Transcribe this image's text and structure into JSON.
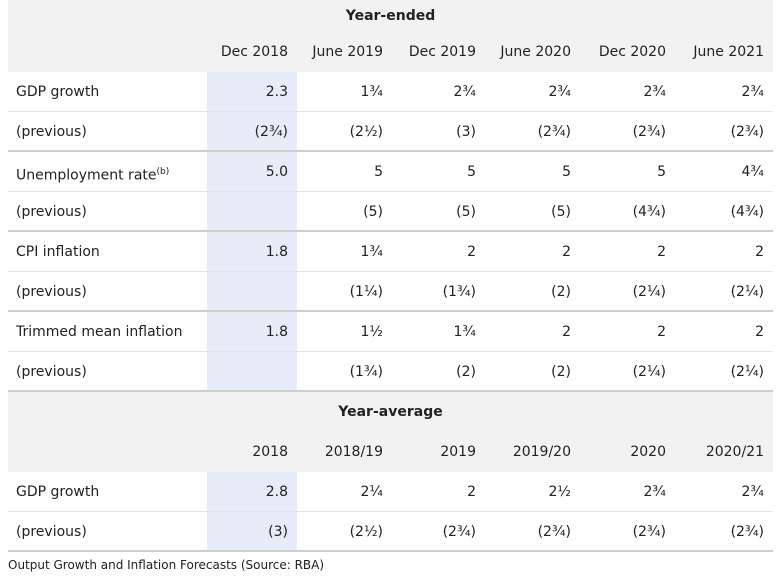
{
  "table": {
    "sections": [
      {
        "title": "Year-ended",
        "columns": [
          "Dec 2018",
          "June 2019",
          "Dec 2019",
          "June 2020",
          "Dec 2020",
          "June 2021"
        ],
        "rows": [
          {
            "label": "GDP growth",
            "values": [
              "2.3",
              "1¾",
              "2¾",
              "2¾",
              "2¾",
              "2¾"
            ]
          },
          {
            "label": "(previous)",
            "values": [
              "(2¾)",
              "(2½)",
              "(3)",
              "(2¾)",
              "(2¾)",
              "(2¾)"
            ]
          },
          {
            "label": "Unemployment rate",
            "note": "(b)",
            "values": [
              "5.0",
              "5",
              "5",
              "5",
              "5",
              "4¾"
            ]
          },
          {
            "label": "(previous)",
            "values": [
              null,
              "(5)",
              "(5)",
              "(5)",
              "(4¾)",
              "(4¾)"
            ]
          },
          {
            "label": "CPI inflation",
            "values": [
              "1.8",
              "1¾",
              "2",
              "2",
              "2",
              "2"
            ]
          },
          {
            "label": "(previous)",
            "values": [
              null,
              "(1¼)",
              "(1¾)",
              "(2)",
              "(2¼)",
              "(2¼)"
            ]
          },
          {
            "label": "Trimmed mean inflation",
            "values": [
              "1.8",
              "1½",
              "1¾",
              "2",
              "2",
              "2"
            ]
          },
          {
            "label": "(previous)",
            "values": [
              null,
              "(1¾)",
              "(2)",
              "(2)",
              "(2¼)",
              "(2¼)"
            ]
          }
        ]
      },
      {
        "title": "Year-average",
        "columns": [
          "2018",
          "2018/19",
          "2019",
          "2019/20",
          "2020",
          "2020/21"
        ],
        "rows": [
          {
            "label": "GDP growth",
            "values": [
              "2.8",
              "2¼",
              "2",
              "2½",
              "2¾",
              "2¾"
            ]
          },
          {
            "label": "(previous)",
            "values": [
              "(3)",
              "(2½)",
              "(2¾)",
              "(2¾)",
              "(2¾)",
              "(2¾)"
            ]
          }
        ]
      }
    ],
    "caption": "Output Growth and Inflation Forecasts (Source: RBA)"
  }
}
